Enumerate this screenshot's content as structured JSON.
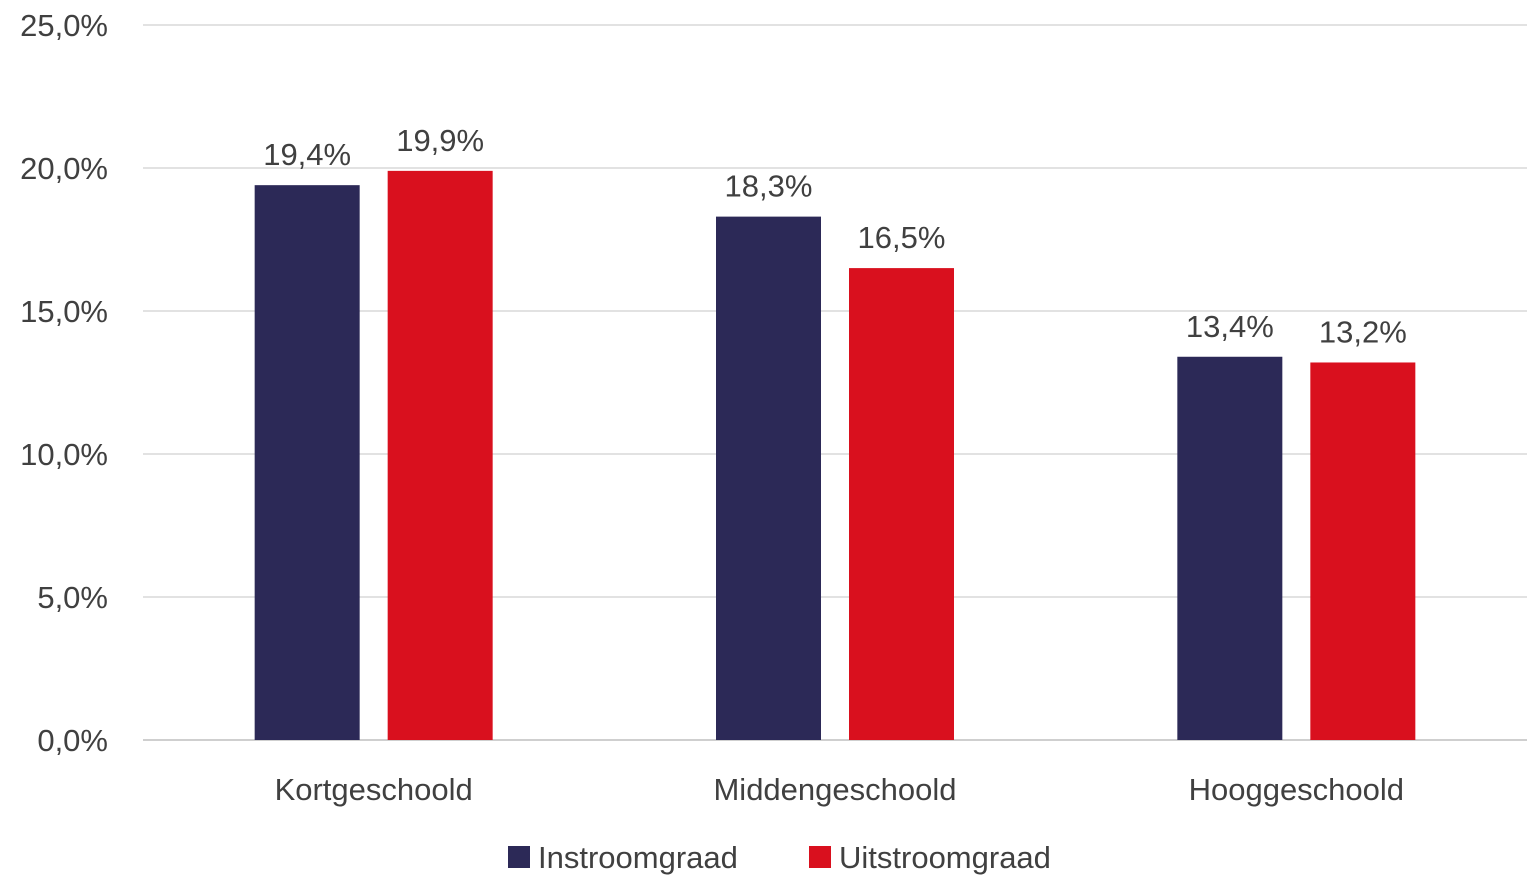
{
  "chart_data": {
    "type": "bar",
    "categories": [
      "Kortgeschoold",
      "Middengeschoold",
      "Hooggeschoold"
    ],
    "series": [
      {
        "name": "Instroomgraad",
        "values": [
          19.4,
          18.3,
          13.4
        ],
        "labels": [
          "19,4%",
          "18,3%",
          "13,4%"
        ],
        "color": "#2c2957"
      },
      {
        "name": "Uitstroomgraad",
        "values": [
          19.9,
          16.5,
          13.2
        ],
        "labels": [
          "19,9%",
          "16,5%",
          "13,2%"
        ],
        "color": "#d9101e"
      }
    ],
    "yticks": [
      0,
      5,
      10,
      15,
      20,
      25
    ],
    "ytick_labels": [
      "0,0%",
      "5,0%",
      "10,0%",
      "15,0%",
      "20,0%",
      "25,0%"
    ],
    "ylim": [
      0,
      25
    ],
    "grid": true,
    "legend_position": "bottom"
  }
}
